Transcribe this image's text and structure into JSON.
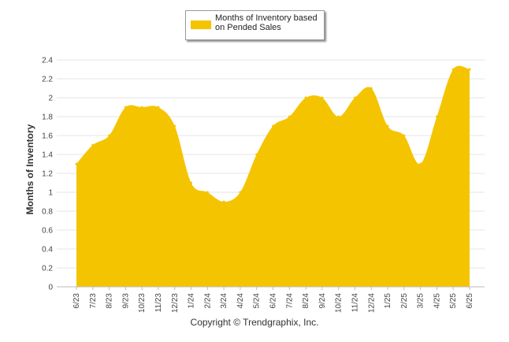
{
  "chart_data": {
    "type": "area",
    "title": "",
    "xlabel": "",
    "ylabel": "Months of Inventory",
    "ylim": [
      0,
      2.4
    ],
    "yticks": [
      "0",
      "0.2",
      "0.4",
      "0.6",
      "0.8",
      "1",
      "1.2",
      "1.4",
      "1.6",
      "1.8",
      "2",
      "2.2",
      "2.4"
    ],
    "categories": [
      "6/23",
      "7/23",
      "8/23",
      "9/23",
      "10/23",
      "11/23",
      "12/23",
      "1/24",
      "2/24",
      "3/24",
      "4/24",
      "5/24",
      "6/24",
      "7/24",
      "8/24",
      "9/24",
      "10/24",
      "11/24",
      "12/24",
      "1/25",
      "2/25",
      "3/25",
      "4/25",
      "5/25",
      "6/25"
    ],
    "series": [
      {
        "name": "Months of Inventory based on Pended Sales",
        "color": "#f5c400",
        "values": [
          1.3,
          1.5,
          1.6,
          1.9,
          1.9,
          1.9,
          1.7,
          1.1,
          1.0,
          0.9,
          1.0,
          1.4,
          1.7,
          1.8,
          2.0,
          2.0,
          1.8,
          2.0,
          2.1,
          1.7,
          1.6,
          1.3,
          1.8,
          2.3,
          2.3
        ]
      }
    ],
    "grid": true,
    "legend_position": "top-center"
  },
  "legend": {
    "label": "Months of Inventory based on Pended Sales"
  },
  "footer": {
    "copyright": "Copyright © Trendgraphix, Inc."
  }
}
